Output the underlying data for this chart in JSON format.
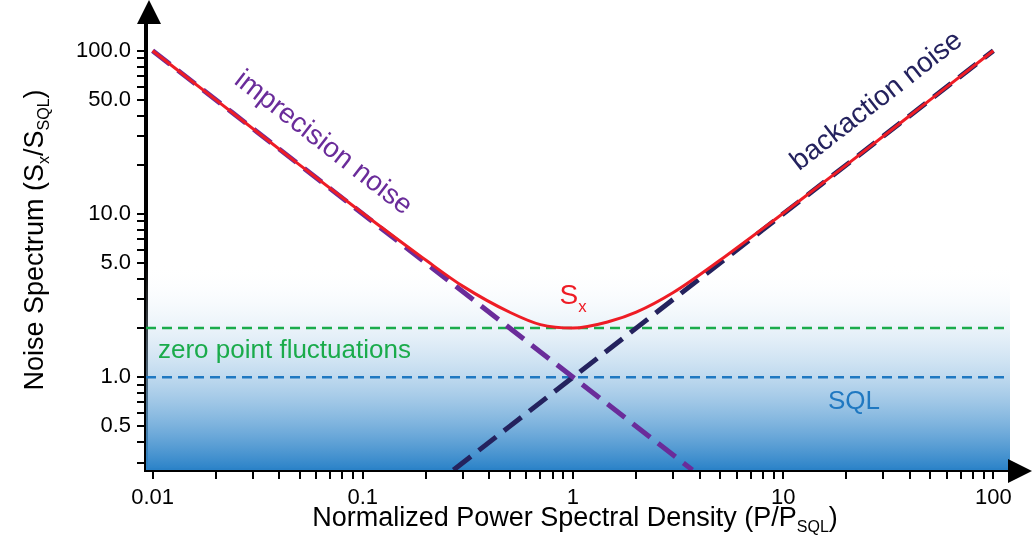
{
  "chart_data": {
    "type": "line",
    "xlabel": "Normalized Power Spectral Density (P/P$_{SQL}$)",
    "ylabel": "Noise Spectrum (S$_{x}$/S$_{SQL}$)",
    "log": "xy",
    "grid": false,
    "legend": false,
    "marker": "none",
    "xlim": [
      0.0093,
      120
    ],
    "ylim": [
      0.27,
      150
    ],
    "xticks": [
      0.01,
      {
        "value": 0.02,
        "label": null
      },
      {
        "value": 0.03,
        "label": null
      },
      {
        "value": 0.04,
        "label": null
      },
      {
        "value": 0.05,
        "label": null
      },
      {
        "value": 0.06,
        "label": null
      },
      {
        "value": 0.07,
        "label": null
      },
      {
        "value": 0.08,
        "label": null
      },
      {
        "value": 0.09,
        "label": null
      },
      0.1,
      {
        "value": 0.2,
        "label": null
      },
      {
        "value": 0.3,
        "label": null
      },
      {
        "value": 0.4,
        "label": null
      },
      {
        "value": 0.5,
        "label": null
      },
      {
        "value": 0.6,
        "label": null
      },
      {
        "value": 0.7,
        "label": null
      },
      {
        "value": 0.8,
        "label": null
      },
      {
        "value": 0.9,
        "label": null
      },
      1,
      {
        "value": 2,
        "label": null
      },
      {
        "value": 3,
        "label": null
      },
      {
        "value": 4,
        "label": null
      },
      {
        "value": 5,
        "label": null
      },
      {
        "value": 6,
        "label": null
      },
      {
        "value": 7,
        "label": null
      },
      {
        "value": 8,
        "label": null
      },
      {
        "value": 9,
        "label": null
      },
      10,
      {
        "value": 20,
        "label": null
      },
      {
        "value": 30,
        "label": null
      },
      {
        "value": 40,
        "label": null
      },
      {
        "value": 50,
        "label": null
      },
      {
        "value": 60,
        "label": null
      },
      {
        "value": 70,
        "label": null
      },
      {
        "value": 80,
        "label": null
      },
      {
        "value": 90,
        "label": null
      },
      100
    ],
    "yticks": [
      {
        "value": 0.3,
        "label": null
      },
      {
        "value": 0.4,
        "label": null
      },
      {
        "value": 0.5,
        "label": "0.5"
      },
      {
        "value": 0.6,
        "label": null
      },
      {
        "value": 0.7,
        "label": null
      },
      {
        "value": 0.8,
        "label": null
      },
      {
        "value": 0.9,
        "label": null
      },
      {
        "value": 1,
        "label": "1.0"
      },
      {
        "value": 2,
        "label": null
      },
      {
        "value": 3,
        "label": null
      },
      {
        "value": 4,
        "label": null
      },
      {
        "value": 5,
        "label": "5.0"
      },
      {
        "value": 6,
        "label": null
      },
      {
        "value": 7,
        "label": null
      },
      {
        "value": 8,
        "label": null
      },
      {
        "value": 9,
        "label": null
      },
      {
        "value": 10,
        "label": "10.0"
      },
      {
        "value": 20,
        "label": null
      },
      {
        "value": 30,
        "label": null
      },
      {
        "value": 40,
        "label": null
      },
      {
        "value": 50,
        "label": "50.0"
      },
      {
        "value": 60,
        "label": null
      },
      {
        "value": 70,
        "label": null
      },
      {
        "value": 80,
        "label": null
      },
      {
        "value": 90,
        "label": null
      },
      {
        "value": 100,
        "label": "100.0"
      }
    ],
    "series": [
      {
        "name": "imprecision noise",
        "color": "#6a2c9a",
        "line_style": "dashed",
        "x": [
          0.01,
          3.7
        ],
        "values": [
          100,
          0.27
        ]
      },
      {
        "name": "backaction noise",
        "color": "#24225e",
        "line_style": "dashed",
        "x": [
          0.27,
          100
        ],
        "values": [
          0.27,
          100
        ]
      },
      {
        "name": "S$_{x}$",
        "color": "#ee1c25",
        "line_style": "solid",
        "x": [
          0.01,
          0.02,
          0.05,
          0.1,
          0.2,
          0.3,
          0.5,
          0.7,
          1,
          1.5,
          2,
          3,
          5,
          10,
          20,
          50,
          100
        ],
        "values": [
          100,
          50,
          20,
          10.1,
          5.2,
          3.6,
          2.5,
          2.1,
          2,
          2.2,
          2.5,
          3.3,
          5.2,
          10.1,
          20,
          50,
          100
        ]
      }
    ],
    "ref_lines": [
      {
        "axis": "y",
        "value": 2,
        "label": "zero point fluctuations",
        "color": "#1aab4b",
        "line_style": "dashed"
      },
      {
        "axis": "y",
        "value": 1,
        "label": "SQL",
        "color": "#1f78c1",
        "line_style": "dashed"
      }
    ],
    "bands": [
      {
        "axis": "y",
        "from": 0.27,
        "to": 5,
        "color": "#2a82c8"
      }
    ]
  }
}
